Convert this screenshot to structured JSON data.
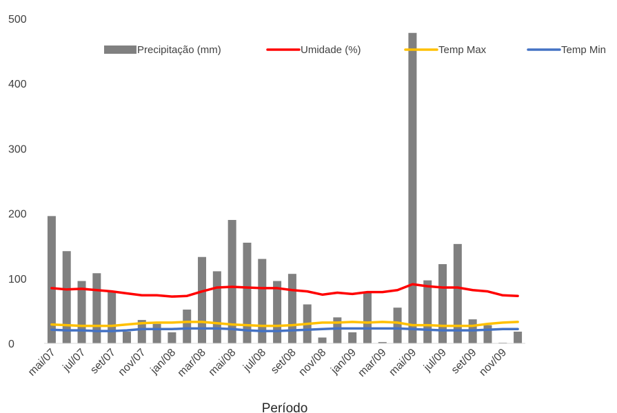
{
  "chart_data": {
    "type": "bar",
    "title": "",
    "xlabel": "Período",
    "ylabel": "",
    "ylim": [
      0,
      500
    ],
    "yticks": [
      0,
      100,
      200,
      300,
      400,
      500
    ],
    "grid": false,
    "legend_position": "top",
    "categories": [
      "mai/07",
      "jun/07",
      "jul/07",
      "ago/07",
      "set/07",
      "out/07",
      "nov/07",
      "dez/07",
      "jan/08",
      "fev/08",
      "mar/08",
      "abr/08",
      "mai/08",
      "jun/08",
      "jul/08",
      "ago/08",
      "set/08",
      "out/08",
      "nov/08",
      "dez/08",
      "jan/09",
      "fev/09",
      "mar/09",
      "abr/09",
      "mai/09",
      "jun/09",
      "jul/09",
      "ago/09",
      "set/09",
      "out/09",
      "nov/09",
      "dez/09"
    ],
    "xtick_labels": [
      "mai/07",
      "",
      "jul/07",
      "",
      "set/07",
      "",
      "nov/07",
      "",
      "jan/08",
      "",
      "mar/08",
      "",
      "mai/08",
      "",
      "jul/08",
      "",
      "set/08",
      "",
      "nov/08",
      "",
      "jan/09",
      "",
      "mar/09",
      "",
      "mai/09",
      "",
      "jul/09",
      "",
      "set/09",
      "",
      "nov/09",
      ""
    ],
    "series": [
      {
        "name": "Precipitação (mm)",
        "kind": "bar",
        "color": "#808080",
        "values": [
          196,
          142,
          96,
          108,
          80,
          18,
          36,
          30,
          17,
          52,
          133,
          111,
          190,
          155,
          130,
          96,
          107,
          60,
          9,
          40,
          17,
          78,
          2,
          55,
          478,
          97,
          122,
          153,
          37,
          28,
          1,
          18
        ]
      },
      {
        "name": "Umidade (%)",
        "kind": "line",
        "color": "#ff0000",
        "values": [
          85,
          83,
          84,
          82,
          80,
          77,
          74,
          74,
          72,
          73,
          80,
          86,
          87,
          86,
          85,
          85,
          82,
          80,
          75,
          78,
          76,
          79,
          79,
          82,
          91,
          88,
          86,
          86,
          82,
          80,
          74,
          73
        ]
      },
      {
        "name": "Temp Max",
        "kind": "line",
        "color": "#ffc000",
        "values": [
          29,
          28,
          27,
          27,
          27,
          29,
          31,
          32,
          32,
          33,
          33,
          31,
          29,
          28,
          27,
          27,
          28,
          30,
          32,
          32,
          33,
          32,
          33,
          32,
          28,
          28,
          27,
          27,
          27,
          30,
          32,
          33
        ]
      },
      {
        "name": "Temp Min",
        "kind": "line",
        "color": "#4472c4",
        "values": [
          21,
          20,
          20,
          19,
          19,
          20,
          22,
          22,
          22,
          23,
          23,
          23,
          22,
          20,
          19,
          19,
          20,
          21,
          22,
          23,
          23,
          23,
          23,
          23,
          22,
          21,
          20,
          20,
          20,
          21,
          22,
          22
        ]
      }
    ]
  }
}
